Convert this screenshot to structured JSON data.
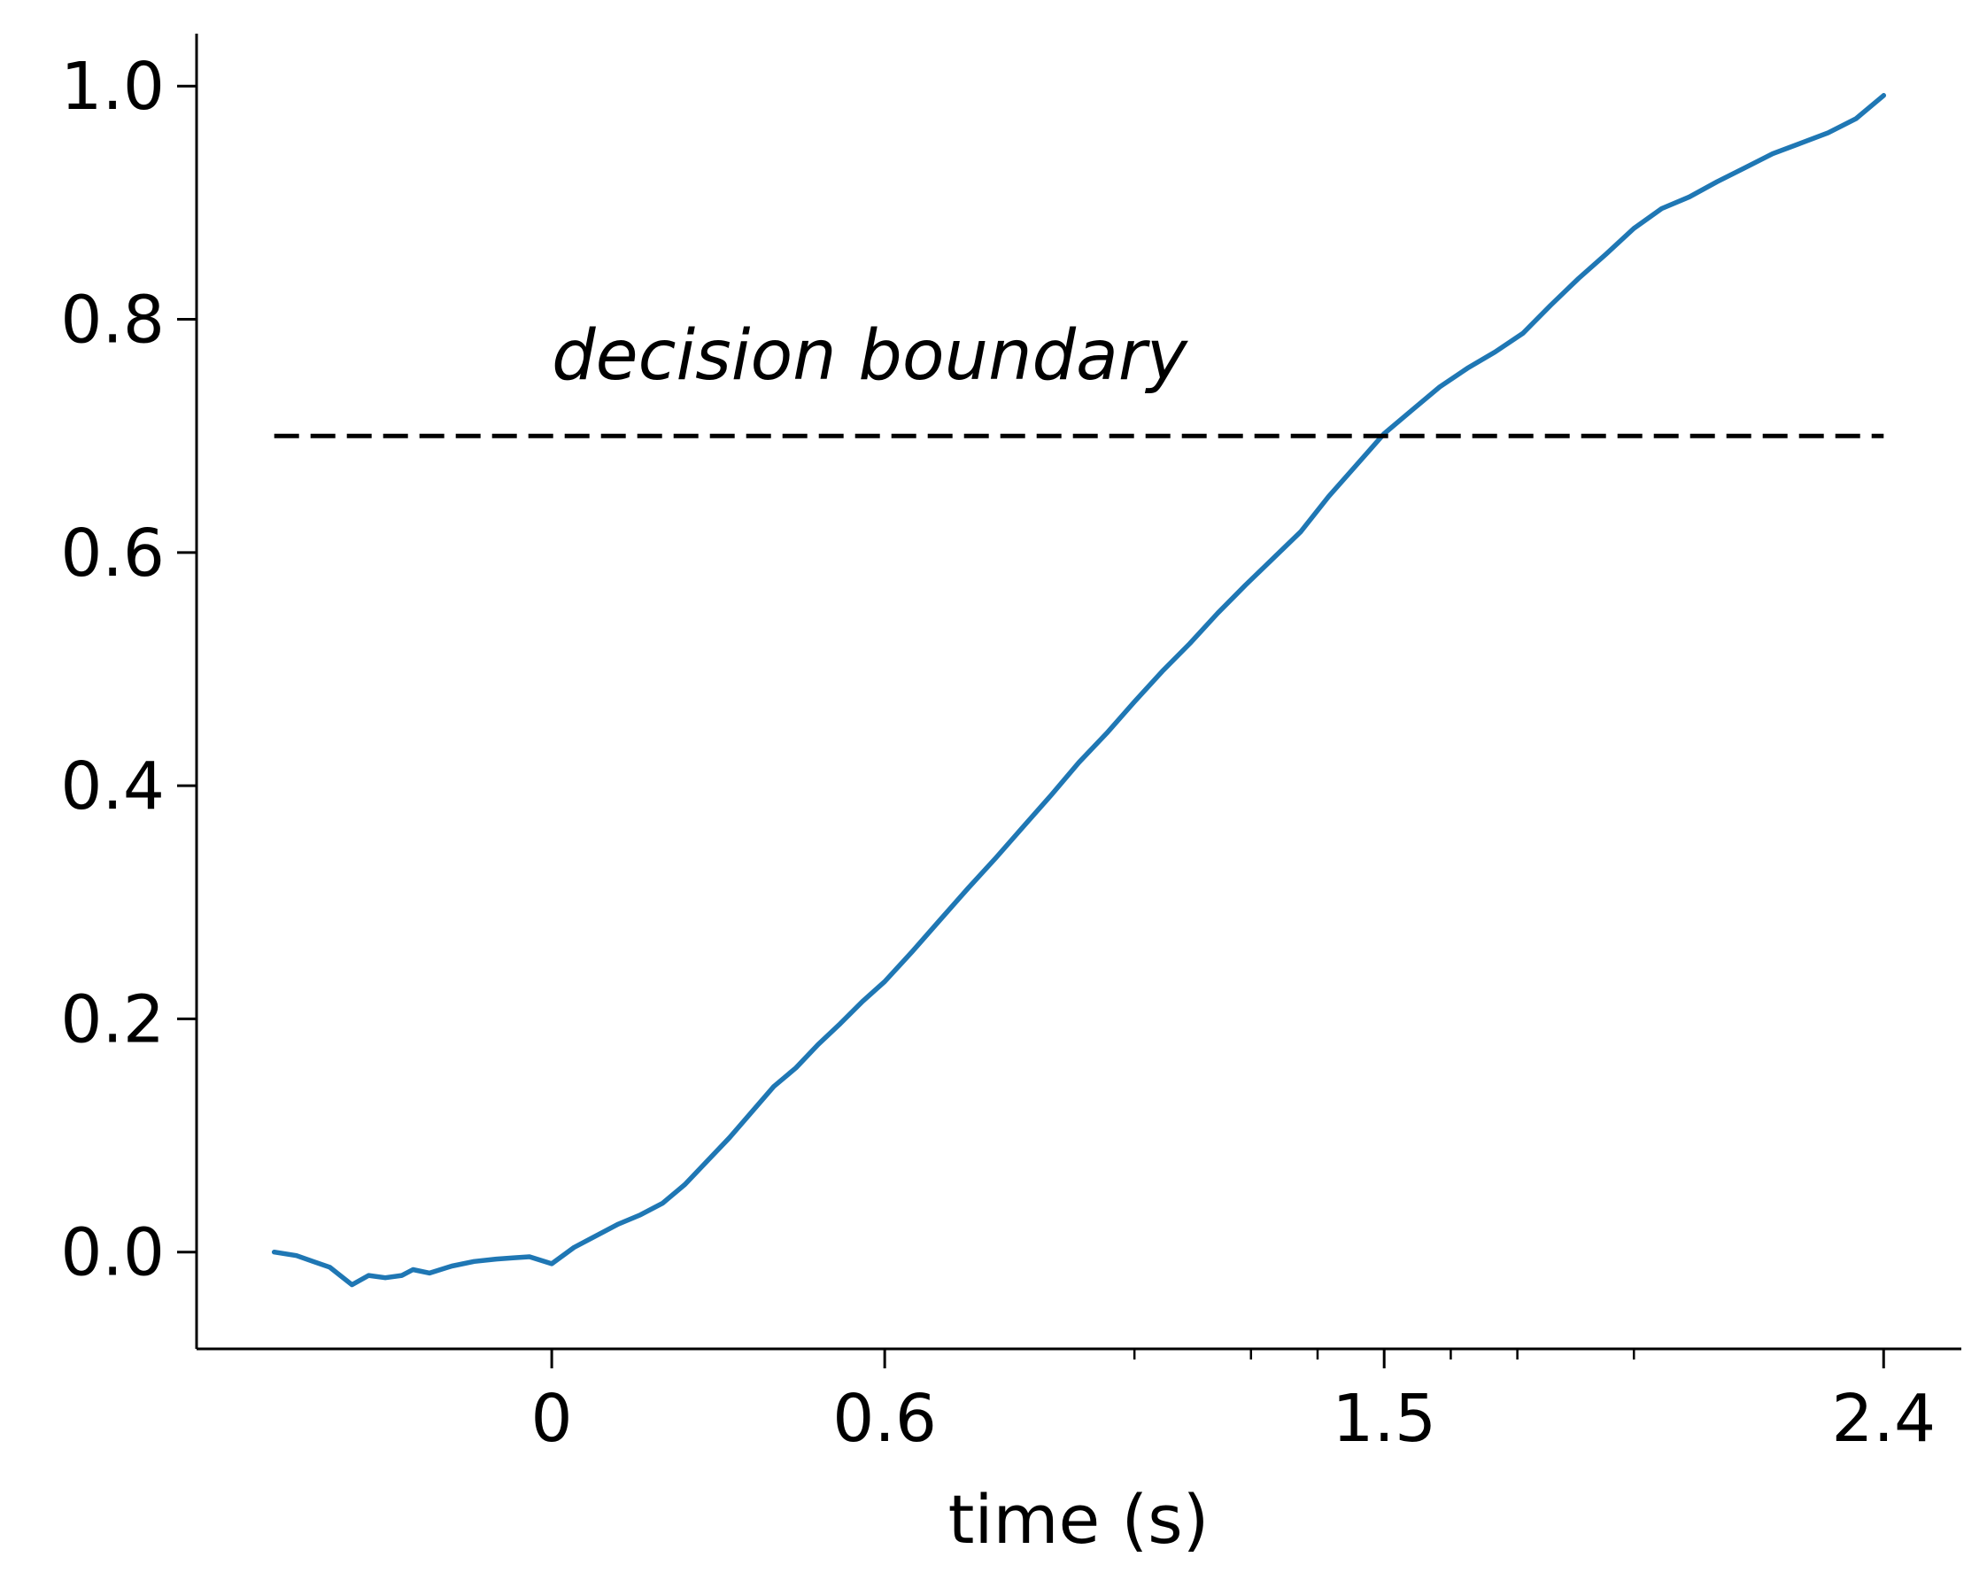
{
  "chart_data": {
    "type": "line",
    "title": "",
    "xlabel": "time (s)",
    "ylabel": "",
    "xlim": [
      -0.64,
      2.54
    ],
    "ylim": [
      -0.083,
      1.045
    ],
    "grid": false,
    "x_major_ticks": [
      0,
      0.6,
      1.5,
      2.4
    ],
    "x_tick_labels": [
      "0",
      "0.6",
      "1.5",
      "2.4"
    ],
    "x_minor_ticks": [
      1.05,
      1.26,
      1.38,
      1.62,
      1.74,
      1.95
    ],
    "y_ticks": [
      0.0,
      0.2,
      0.4,
      0.6,
      0.8,
      1.0
    ],
    "y_tick_labels": [
      "0.0",
      "0.2",
      "0.4",
      "0.6",
      "0.8",
      "1.0"
    ],
    "series": [
      {
        "color": "#1f77b4",
        "style": "solid",
        "x": [
          -0.5,
          -0.46,
          -0.43,
          -0.4,
          -0.36,
          -0.33,
          -0.3,
          -0.27,
          -0.25,
          -0.22,
          -0.18,
          -0.14,
          -0.1,
          -0.07,
          -0.04,
          0.0,
          0.04,
          0.08,
          0.12,
          0.16,
          0.2,
          0.24,
          0.28,
          0.32,
          0.36,
          0.4,
          0.44,
          0.48,
          0.52,
          0.56,
          0.6,
          0.65,
          0.7,
          0.75,
          0.8,
          0.85,
          0.9,
          0.95,
          1.0,
          1.05,
          1.1,
          1.15,
          1.2,
          1.25,
          1.3,
          1.35,
          1.4,
          1.45,
          1.5,
          1.55,
          1.6,
          1.65,
          1.7,
          1.75,
          1.8,
          1.85,
          1.9,
          1.95,
          2.0,
          2.05,
          2.1,
          2.15,
          2.2,
          2.25,
          2.3,
          2.35,
          2.4
        ],
        "y": [
          0.0,
          -0.003,
          -0.008,
          -0.013,
          -0.028,
          -0.02,
          -0.022,
          -0.02,
          -0.015,
          -0.018,
          -0.012,
          -0.008,
          -0.006,
          -0.005,
          -0.004,
          -0.01,
          0.004,
          0.014,
          0.024,
          0.032,
          0.042,
          0.058,
          0.078,
          0.098,
          0.12,
          0.142,
          0.158,
          0.178,
          0.196,
          0.215,
          0.232,
          0.258,
          0.285,
          0.312,
          0.338,
          0.365,
          0.392,
          0.42,
          0.445,
          0.472,
          0.498,
          0.522,
          0.548,
          0.572,
          0.595,
          0.618,
          0.648,
          0.675,
          0.702,
          0.722,
          0.742,
          0.758,
          0.772,
          0.788,
          0.812,
          0.835,
          0.856,
          0.878,
          0.895,
          0.905,
          0.918,
          0.93,
          0.942,
          0.951,
          0.96,
          0.972,
          0.992
        ]
      },
      {
        "color": "#000000",
        "style": "dashed",
        "x": [
          -0.5,
          2.4
        ],
        "y": [
          0.7,
          0.7
        ]
      }
    ],
    "annotations": [
      {
        "text": "decision boundary",
        "x": 0.0,
        "y": 0.77
      }
    ]
  }
}
